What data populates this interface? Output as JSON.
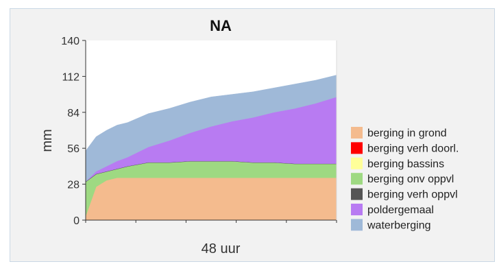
{
  "chart_data": {
    "type": "area",
    "stacked": true,
    "title": "NA",
    "xlabel": "48 uur",
    "ylabel": "mm",
    "ylim": [
      0,
      140
    ],
    "yticks": [
      0,
      28,
      56,
      84,
      112,
      140
    ],
    "x": [
      0,
      2,
      4,
      6,
      8,
      12,
      16,
      20,
      24,
      28,
      32,
      36,
      40,
      44,
      48
    ],
    "legend_position": "right",
    "series": [
      {
        "name": "berging in grond",
        "color": "#f4bb8e",
        "values": [
          3,
          26,
          31,
          33,
          33,
          33,
          33,
          33,
          33,
          33,
          33,
          33,
          33,
          33,
          33
        ]
      },
      {
        "name": "berging verh doorl.",
        "color": "#ff0000",
        "values": [
          0,
          0,
          0,
          0,
          0,
          0,
          0,
          0,
          0,
          0,
          0,
          0,
          0,
          0,
          0
        ]
      },
      {
        "name": "berging bassins",
        "color": "#ffff99",
        "values": [
          0,
          0,
          0,
          0,
          0,
          0,
          0,
          0,
          0,
          0,
          0,
          0,
          0,
          0,
          0
        ]
      },
      {
        "name": "berging onv oppvl",
        "color": "#9ed982",
        "values": [
          27,
          10,
          7,
          7,
          9,
          12,
          12,
          13,
          13,
          13,
          12,
          12,
          11,
          11,
          11
        ]
      },
      {
        "name": "berging verh oppvl",
        "color": "#555555",
        "values": [
          0,
          0,
          0,
          0,
          0,
          0,
          0,
          0,
          0,
          0,
          0,
          0,
          0,
          0,
          0
        ]
      },
      {
        "name": "poldergemaal",
        "color": "#b87bf2",
        "values": [
          0,
          2,
          4,
          6,
          7,
          12,
          17,
          22,
          27,
          31,
          35,
          39,
          43,
          47,
          52
        ]
      },
      {
        "name": "waterberging",
        "color": "#9fb9d8",
        "values": [
          24,
          27,
          28,
          28,
          27,
          26,
          25,
          24,
          23,
          21,
          20,
          19,
          19,
          18,
          17
        ]
      }
    ]
  }
}
